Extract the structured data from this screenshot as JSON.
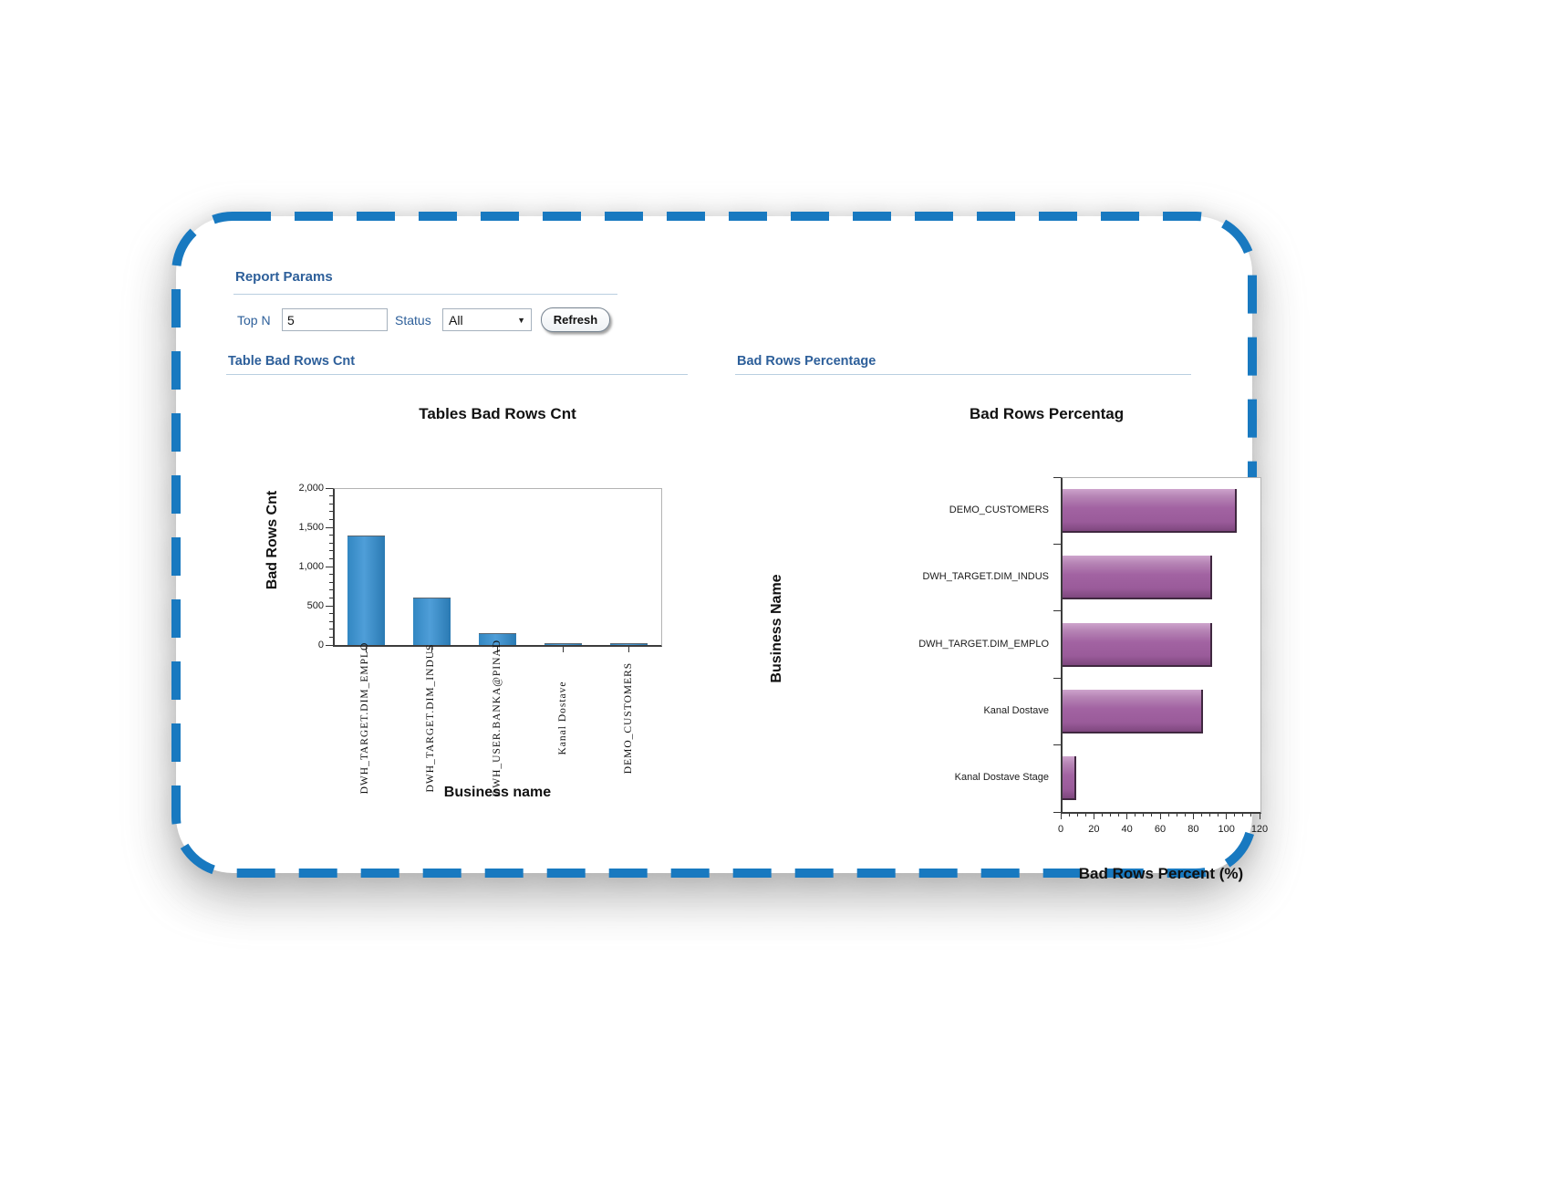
{
  "report_params": {
    "title": "Report Params",
    "top_n_label": "Top N",
    "top_n_value": "5",
    "status_label": "Status",
    "status_value": "All",
    "refresh_label": "Refresh"
  },
  "sections": {
    "left_title": "Table Bad Rows Cnt",
    "right_title": "Bad Rows Percentage"
  },
  "colors": {
    "frame_blue": "#1879c0",
    "header_blue": "#2d5f9a",
    "rule_blue": "#b9cfe0",
    "bar_blue": "#3287c2",
    "bar_purple": "#a263a2"
  },
  "chart_data": [
    {
      "type": "bar",
      "orientation": "vertical",
      "title": "Tables Bad Rows Cnt",
      "xlabel": "Business name",
      "ylabel": "Bad Rows Cnt",
      "categories": [
        "DWH_TARGET.DIM_EMPLO",
        "DWH_TARGET.DIM_INDUS",
        "DWH_USER.BANKA@PINAD",
        "Kanal Dostave",
        "DEMO_CUSTOMERS"
      ],
      "values": [
        1400,
        600,
        150,
        20,
        10
      ],
      "ylim": [
        0,
        2000
      ],
      "yticks": [
        0,
        500,
        1000,
        1500,
        2000
      ],
      "ytick_labels": [
        "0",
        "500",
        "1,000",
        "1,500",
        "2,000"
      ],
      "grid": false,
      "legend": "none"
    },
    {
      "type": "bar",
      "orientation": "horizontal",
      "title": "Bad Rows Percentag",
      "xlabel": "Bad Rows Percent (%)",
      "ylabel": "Business Name",
      "categories": [
        "DEMO_CUSTOMERS",
        "DWH_TARGET.DIM_INDUS",
        "DWH_TARGET.DIM_EMPLO",
        "Kanal Dostave",
        "Kanal Dostave Stage"
      ],
      "values": [
        105,
        90,
        90,
        85,
        8
      ],
      "xlim": [
        0,
        120
      ],
      "xticks": [
        0,
        20,
        40,
        60,
        80,
        100,
        120
      ],
      "xtick_labels": [
        "0",
        "20",
        "40",
        "60",
        "80",
        "100",
        "120"
      ],
      "grid": false,
      "legend": "none"
    }
  ]
}
